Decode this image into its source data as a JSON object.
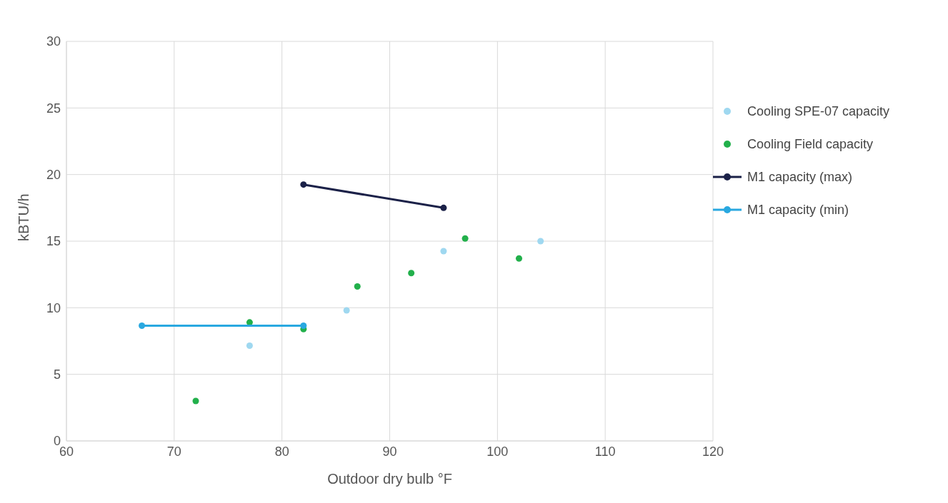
{
  "chart_data": {
    "type": "scatter",
    "xlabel": "Outdoor  dry bulb °F",
    "ylabel": "kBTU/h",
    "xlim": [
      60,
      120
    ],
    "xticks": [
      60,
      70,
      80,
      90,
      100,
      110,
      120
    ],
    "ylim": [
      0,
      30
    ],
    "yticks": [
      0,
      5,
      10,
      15,
      20,
      25,
      30
    ],
    "grid": true,
    "legend": "right",
    "marker": "circle",
    "series": [
      {
        "name": "Cooling SPE-07 capacity",
        "color": "#9fd8f0",
        "x": [
          77,
          86,
          95,
          104
        ],
        "values": [
          7.15,
          9.8,
          14.25,
          15.0
        ]
      },
      {
        "name": "Cooling Field capacity",
        "color": "#22b04b",
        "x": [
          72,
          77,
          82,
          87,
          92,
          97,
          102
        ],
        "values": [
          3.0,
          8.9,
          8.4,
          11.6,
          12.6,
          15.2,
          13.7
        ]
      },
      {
        "name": "M1 capacity (max)",
        "type": "line",
        "color": "#1b2148",
        "x": [
          82,
          95
        ],
        "values": [
          19.25,
          17.5
        ]
      },
      {
        "name": "M1 capacity (min)",
        "type": "line",
        "color": "#29a8e0",
        "x": [
          67,
          82
        ],
        "values": [
          8.65,
          8.65
        ]
      }
    ]
  }
}
